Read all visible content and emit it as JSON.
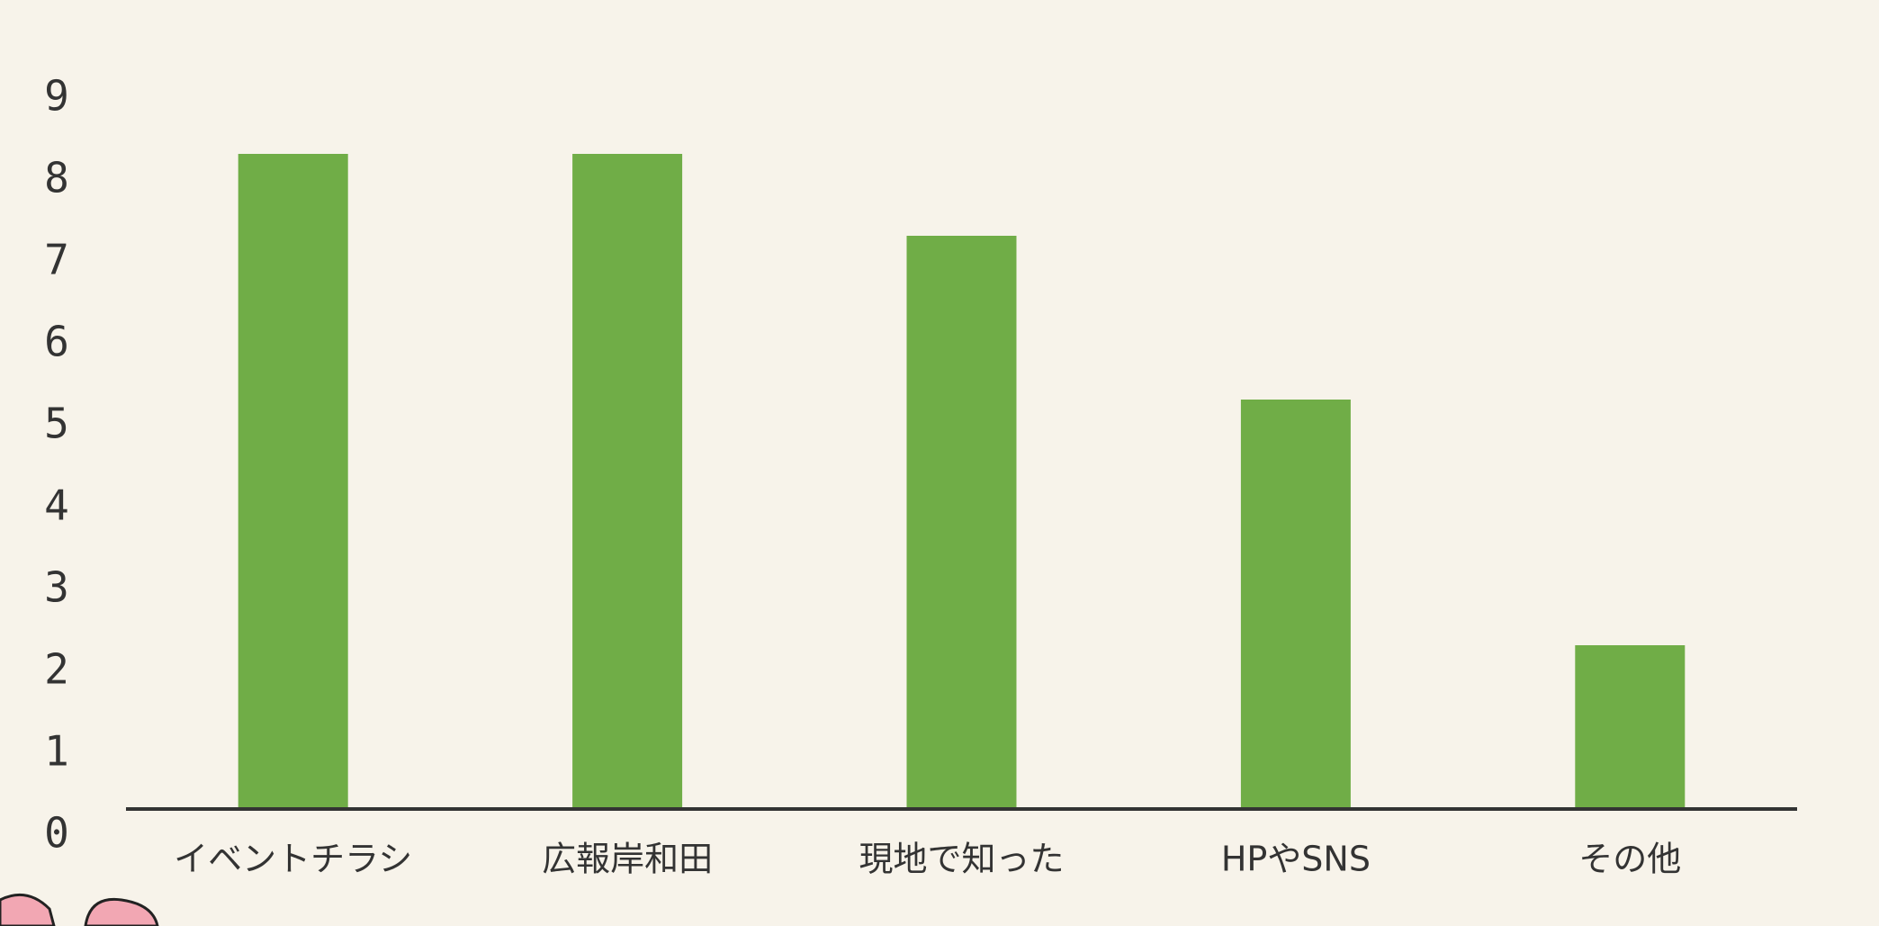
{
  "chart_data": {
    "type": "bar",
    "categories": [
      "イベントチラシ",
      "広報岸和田",
      "現地で知った",
      "HPやSNS",
      "その他"
    ],
    "values": [
      8,
      8,
      7,
      5,
      2
    ],
    "color": "#70ad47",
    "ylim": [
      0,
      9
    ],
    "yticks": [
      0,
      1,
      2,
      3,
      4,
      5,
      6,
      7,
      8,
      9
    ],
    "grid": false
  }
}
